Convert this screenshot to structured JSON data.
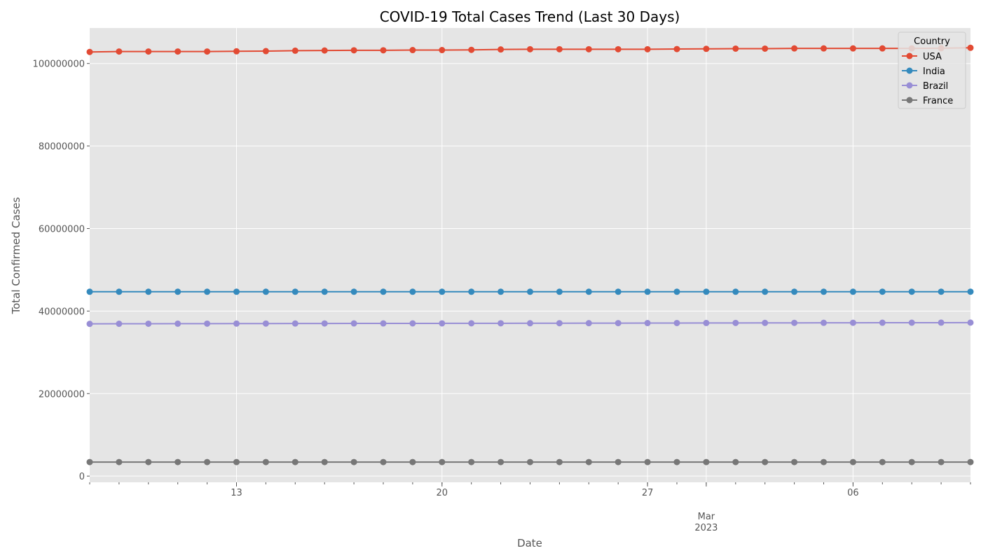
{
  "chart_data": {
    "type": "line",
    "title": "COVID-19 Total Cases Trend (Last 30 Days)",
    "xlabel": "Date",
    "ylabel": "Total Confirmed Cases",
    "x_start": "2023-02-08",
    "x_end": "2023-03-10",
    "x": [
      "2023-02-08",
      "2023-02-09",
      "2023-02-10",
      "2023-02-11",
      "2023-02-12",
      "2023-02-13",
      "2023-02-14",
      "2023-02-15",
      "2023-02-16",
      "2023-02-17",
      "2023-02-18",
      "2023-02-19",
      "2023-02-20",
      "2023-02-21",
      "2023-02-22",
      "2023-02-23",
      "2023-02-24",
      "2023-02-25",
      "2023-02-26",
      "2023-02-27",
      "2023-02-28",
      "2023-03-01",
      "2023-03-02",
      "2023-03-03",
      "2023-03-04",
      "2023-03-05",
      "2023-03-06",
      "2023-03-07",
      "2023-03-08",
      "2023-03-09",
      "2023-03-10"
    ],
    "x_ticks": [
      {
        "date": "2023-02-13",
        "label": "13"
      },
      {
        "date": "2023-02-20",
        "label": "20"
      },
      {
        "date": "2023-02-27",
        "label": "27"
      },
      {
        "date": "2023-03-01",
        "label": "Mar",
        "sublabel": "2023"
      },
      {
        "date": "2023-03-06",
        "label": "06"
      }
    ],
    "ylim": [
      -1500000,
      108600000
    ],
    "y_ticks": [
      {
        "value": 0,
        "label": "0"
      },
      {
        "value": 20000000,
        "label": "20000000"
      },
      {
        "value": 40000000,
        "label": "40000000"
      },
      {
        "value": 60000000,
        "label": "60000000"
      },
      {
        "value": 80000000,
        "label": "80000000"
      },
      {
        "value": 100000000,
        "label": "100000000"
      }
    ],
    "grid": true,
    "legend": {
      "title": "Country",
      "placement": "top-right"
    },
    "series": [
      {
        "name": "USA",
        "color": "#E24A33",
        "values": [
          102800000,
          102900000,
          102900000,
          102900000,
          102900000,
          102950000,
          103000000,
          103100000,
          103150000,
          103200000,
          103200000,
          103250000,
          103250000,
          103300000,
          103400000,
          103450000,
          103450000,
          103450000,
          103450000,
          103450000,
          103500000,
          103550000,
          103600000,
          103600000,
          103650000,
          103650000,
          103650000,
          103650000,
          103650000,
          103700000,
          103800000
        ]
      },
      {
        "name": "India",
        "color": "#348ABD",
        "values": [
          44680000,
          44680000,
          44680000,
          44680000,
          44680000,
          44680000,
          44680000,
          44680000,
          44680000,
          44680000,
          44680000,
          44680000,
          44680000,
          44680000,
          44680000,
          44680000,
          44680000,
          44680000,
          44680000,
          44680000,
          44680000,
          44680000,
          44680000,
          44680000,
          44680000,
          44680000,
          44680000,
          44690000,
          44690000,
          44690000,
          44690000
        ]
      },
      {
        "name": "Brazil",
        "color": "#988ED5",
        "values": [
          36900000,
          36920000,
          36930000,
          36940000,
          36950000,
          36960000,
          36970000,
          36980000,
          36990000,
          37000000,
          37000000,
          37010000,
          37020000,
          37030000,
          37040000,
          37050000,
          37060000,
          37070000,
          37080000,
          37090000,
          37100000,
          37110000,
          37120000,
          37130000,
          37140000,
          37150000,
          37160000,
          37170000,
          37180000,
          37190000,
          37200000
        ]
      },
      {
        "name": "France",
        "color": "#777777",
        "values": [
          3400000,
          3400000,
          3400000,
          3400000,
          3400000,
          3400000,
          3400000,
          3400000,
          3400000,
          3400000,
          3400000,
          3400000,
          3400000,
          3400000,
          3400000,
          3400000,
          3400000,
          3400000,
          3400000,
          3400000,
          3400000,
          3400000,
          3400000,
          3400000,
          3400000,
          3400000,
          3400000,
          3400000,
          3400000,
          3400000,
          3400000
        ]
      }
    ]
  }
}
